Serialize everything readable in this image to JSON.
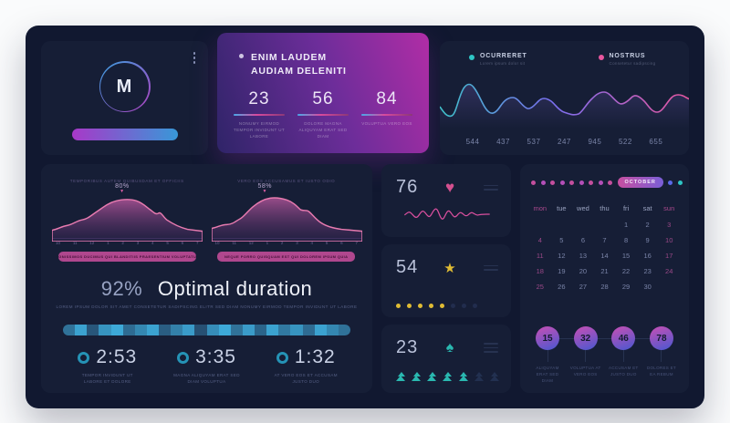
{
  "logo_card": {
    "letter": "M"
  },
  "stats_card": {
    "title_line1": "ENIM LAUDEM",
    "title_line2": "AUDIAM DELENITI",
    "stats": [
      {
        "value": "23",
        "caption": "NONUMY EIRMOD TEMPOR INVIDUNT UT LABORE"
      },
      {
        "value": "56",
        "caption": "DOLORE MAGNA ALIQUYAM ERAT SED DIAM"
      },
      {
        "value": "84",
        "caption": "VOLUPTUA VERO EOS"
      }
    ]
  },
  "line_chart_card": {
    "legend": [
      {
        "label": "OCURRERET",
        "sublabel": "Lorem ipsum dolor sit",
        "color": "#2ec5c5"
      },
      {
        "label": "NOSTRUS",
        "sublabel": "Consetetur sadipscing",
        "color": "#e8569e"
      }
    ],
    "values": [
      "544",
      "437",
      "537",
      "247",
      "945",
      "522",
      "655"
    ]
  },
  "chart_data": {
    "type": "line",
    "x": [
      "1",
      "2",
      "3",
      "4",
      "5",
      "6",
      "7"
    ],
    "values": [
      544,
      437,
      537,
      247,
      945,
      522,
      655
    ],
    "title": "",
    "legend_entries": [
      "OCURRERET",
      "NOSTRUS"
    ],
    "legend_position": "top"
  },
  "duration_card": {
    "charts": [
      {
        "title": "TEMPORIBUS AUTEM QUIBUSDAM ET OFFICIIS",
        "peak_label": "80%",
        "axis": [
          "10",
          "11",
          "12",
          "1",
          "2",
          "3",
          "4",
          "5",
          "6",
          "7"
        ],
        "tag": "DIGNISSIMOS DUCIMUS QUI BLANDITIIS PRAESENTIUM VOLUPTATUM"
      },
      {
        "title": "VERO EOS ACCUSAMUS ET IUSTO ODIO",
        "peak_label": "58%",
        "axis": [
          "10",
          "11",
          "12",
          "1",
          "2",
          "3",
          "4",
          "5",
          "6",
          "7"
        ],
        "tag": "NEQUE PORRO QUISQUAM EST QUI DOLOREM IPSUM QUIA"
      }
    ],
    "summary_value": "92%",
    "summary_label": "Optimal duration",
    "summary_caption": "LOREM IPSUM DOLOR SIT AMET CONSETETUR SADIPSCING ELITR SED DIAM NONUMY EIRMOD TEMPOR INVIDUNT UT LABORE",
    "progress_segments": [
      0.55,
      0.9,
      0.35,
      0.8,
      0.95,
      0.5,
      0.7,
      0.9,
      0.4,
      0.65,
      0.85,
      0.3,
      0.75,
      0.95,
      0.55,
      0.85,
      0.45,
      0.9,
      0.6,
      0.8,
      0.5,
      0.9,
      0.7,
      0.55
    ],
    "times": [
      {
        "value": "2:53",
        "caption": "TEMPOR INVIDUNT UT LABORE ET DOLORE"
      },
      {
        "value": "3:35",
        "caption": "MAGNA ALIQUYAM ERAT SED DIAM VOLUPTUA"
      },
      {
        "value": "1:32",
        "caption": "AT VERO EOS ET ACCUSAM JUSTO DUO"
      }
    ]
  },
  "metric_cards": [
    {
      "value": "76",
      "icon": "heart-icon"
    },
    {
      "value": "54",
      "icon": "star-icon",
      "active_dots": 5,
      "dim_dots": 3
    },
    {
      "value": "23",
      "icon": "leaf-icon",
      "active_trees": 5,
      "dim_trees": 2
    }
  ],
  "calendar_card": {
    "month": "OCTOBER",
    "header_dots_before": [
      "#c44f9e",
      "#b44fb8",
      "#c44f9e",
      "#b44fb8",
      "#c44f9e",
      "#b44fb8",
      "#c44f9e",
      "#b44fb8",
      "#c44f9e"
    ],
    "header_dots_after": [
      "#5a68e8",
      "#2ec5c5"
    ],
    "weekdays": [
      "mon",
      "tue",
      "wed",
      "thu",
      "fri",
      "sat",
      "sun"
    ],
    "weeks": [
      [
        "",
        "",
        "",
        "",
        "1",
        "2",
        "3"
      ],
      [
        "4",
        "5",
        "6",
        "7",
        "8",
        "9",
        "10"
      ],
      [
        "11",
        "12",
        "13",
        "14",
        "15",
        "16",
        "17"
      ],
      [
        "18",
        "19",
        "20",
        "21",
        "22",
        "23",
        "24"
      ],
      [
        "25",
        "26",
        "27",
        "28",
        "29",
        "30",
        ""
      ]
    ],
    "milestones": [
      {
        "value": "15",
        "caption": "ALIQUYAM ERAT SED DIAM"
      },
      {
        "value": "32",
        "caption": "VOLUPTUA AT VERO EOS"
      },
      {
        "value": "46",
        "caption": "ACCUSAM ET JUSTO DUO"
      },
      {
        "value": "78",
        "caption": "DOLORES ET EA REBUM"
      }
    ]
  }
}
